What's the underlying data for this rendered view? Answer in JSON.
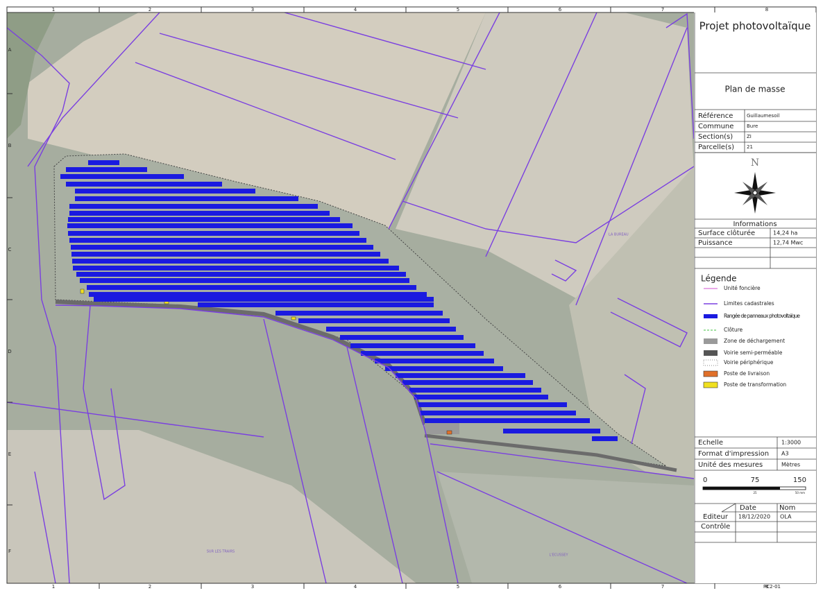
{
  "grid": {
    "columns": [
      "1",
      "2",
      "3",
      "4",
      "5",
      "6",
      "7",
      "8"
    ],
    "rows": [
      "A",
      "B",
      "C",
      "D",
      "E",
      "F"
    ]
  },
  "map_labels": [
    "LA BUREAU",
    "SUR LES TRAIRS",
    "L'ECUSSEY"
  ],
  "title_block": {
    "project": "Projet photovoltaïque",
    "plan": "Plan de masse",
    "identity": [
      {
        "label": "Référence",
        "value": "Guillaumesoil"
      },
      {
        "label": "Commune",
        "value": "Bure"
      },
      {
        "label": "Section(s)",
        "value": "ZI"
      },
      {
        "label": "Parcelle(s)",
        "value": "21"
      }
    ],
    "north": "N",
    "info": {
      "title": "Informations",
      "rows": [
        {
          "label": "Surface clôturée",
          "value": "14,24 ha"
        },
        {
          "label": "Puissance",
          "value": "12,74 Mwc"
        }
      ]
    },
    "legend": {
      "title": "Légende",
      "items": [
        "Unité foncière",
        "Limites cadastrales",
        "Rangée de panneaux photovoltaïque",
        "Clôture",
        "Zone de déchargement",
        "Voirie semi-perméable",
        "Voirie périphérique",
        "Poste de livraison",
        "Poste de transformation"
      ]
    },
    "print": [
      {
        "label": "Echelle",
        "value": "1:3000"
      },
      {
        "label": "Format d'impression",
        "value": "A3"
      },
      {
        "label": "Unité des mesures",
        "value": "Mètres"
      }
    ],
    "scale": {
      "labels": [
        "0",
        "75",
        "150"
      ],
      "minor": [
        "25",
        "50 mm"
      ]
    },
    "sign": {
      "headers": [
        "Date",
        "Nom"
      ],
      "rows": [
        {
          "label": "Editeur",
          "date": "18/12/2020",
          "name": "OLA"
        },
        {
          "label": "Contrôle"
        }
      ]
    },
    "sheet": "PC2-01"
  }
}
